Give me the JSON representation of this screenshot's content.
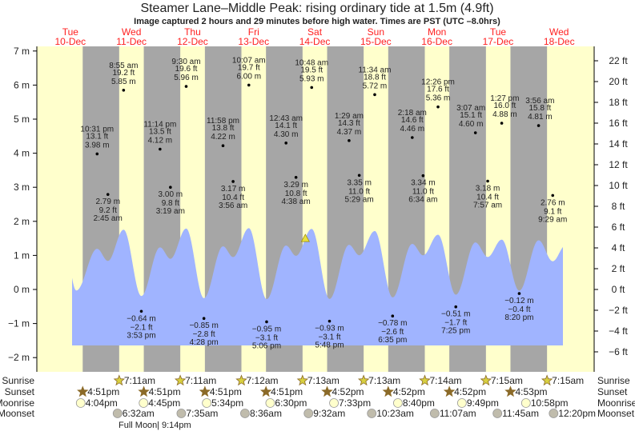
{
  "title": "Steamer Lane–Middle Peak: rising  ordinary tide at 1.5m (4.9ft)",
  "subtitle": "Image captured 2 hours and 29 minutes before high water. Times are PST (UTC –8.0hrs)",
  "colors": {
    "day": "#ffffcc",
    "night": "#a6a6a6",
    "water": "#a0b4ff",
    "date_label": "#ff2020",
    "sunrise": "#d8d040",
    "sunset": "#8b6a28",
    "moonrise": "#ffffcc",
    "moonset": "#c0bcac",
    "current_marker": "#e8e040"
  },
  "chart_data": {
    "type": "area",
    "title": "Steamer Lane–Middle Peak: rising  ordinary tide at 1.5m (4.9ft)",
    "ylim_m": [
      -2,
      7
    ],
    "ylim_ft": [
      -6,
      22
    ],
    "y_ticks_m": [
      "7 m",
      "6 m",
      "5 m",
      "4 m",
      "3 m",
      "2 m",
      "1 m",
      "0 m",
      "−1 m",
      "−2 m"
    ],
    "y_ticks_ft": [
      "22 ft",
      "20 ft",
      "18 ft",
      "16 ft",
      "14 ft",
      "12 ft",
      "10 ft",
      "8 ft",
      "6 ft",
      "4 ft",
      "2 ft",
      "0 ft",
      "−2 ft",
      "−4 ft",
      "−6 ft"
    ],
    "days": [
      {
        "dow": "Tue",
        "date": "10-Dec"
      },
      {
        "dow": "Wed",
        "date": "11-Dec"
      },
      {
        "dow": "Thu",
        "date": "12-Dec"
      },
      {
        "dow": "Fri",
        "date": "13-Dec"
      },
      {
        "dow": "Sat",
        "date": "14-Dec"
      },
      {
        "dow": "Sun",
        "date": "15-Dec"
      },
      {
        "dow": "Mon",
        "date": "16-Dec"
      },
      {
        "dow": "Tue",
        "date": "17-Dec"
      },
      {
        "dow": "Wed",
        "date": "18-Dec"
      }
    ],
    "current": {
      "day": 14,
      "time": "8:19am",
      "m": 1.5,
      "ft": 4.9
    },
    "extremes": [
      {
        "day": 10,
        "time": "10:31 pm",
        "ft": "13.1 ft",
        "m": "3.98 m",
        "v": 3.98,
        "type": "high"
      },
      {
        "day": 11,
        "time": "2:45 am",
        "ft": "9.2 ft",
        "m": "2.79 m",
        "v": 2.79,
        "type": "low"
      },
      {
        "day": 11,
        "time": "8:55 am",
        "ft": "19.2 ft",
        "m": "5.85 m",
        "v": 5.85,
        "type": "high"
      },
      {
        "day": 11,
        "time": "3:53 pm",
        "ft": "−2.1 ft",
        "m": "−0.64 m",
        "v": -0.64,
        "type": "low"
      },
      {
        "day": 11,
        "time": "11:14 pm",
        "ft": "13.5 ft",
        "m": "4.12 m",
        "v": 4.12,
        "type": "high"
      },
      {
        "day": 12,
        "time": "3:19 am",
        "ft": "9.8 ft",
        "m": "3.00 m",
        "v": 3.0,
        "type": "low"
      },
      {
        "day": 12,
        "time": "9:30 am",
        "ft": "19.6 ft",
        "m": "5.96 m",
        "v": 5.96,
        "type": "high"
      },
      {
        "day": 12,
        "time": "4:28 pm",
        "ft": "−2.8 ft",
        "m": "−0.85 m",
        "v": -0.85,
        "type": "low"
      },
      {
        "day": 12,
        "time": "11:58 pm",
        "ft": "13.8 ft",
        "m": "4.22 m",
        "v": 4.22,
        "type": "high"
      },
      {
        "day": 13,
        "time": "3:56 am",
        "ft": "10.4 ft",
        "m": "3.17 m",
        "v": 3.17,
        "type": "low"
      },
      {
        "day": 13,
        "time": "10:07 am",
        "ft": "19.7 ft",
        "m": "6.00 m",
        "v": 6.0,
        "type": "high"
      },
      {
        "day": 13,
        "time": "5:06 pm",
        "ft": "−3.1 ft",
        "m": "−0.95 m",
        "v": -0.95,
        "type": "low"
      },
      {
        "day": 14,
        "time": "12:43 am",
        "ft": "14.1 ft",
        "m": "4.30 m",
        "v": 4.3,
        "type": "high"
      },
      {
        "day": 14,
        "time": "4:38 am",
        "ft": "10.8 ft",
        "m": "3.29 m",
        "v": 3.29,
        "type": "low"
      },
      {
        "day": 14,
        "time": "10:48 am",
        "ft": "19.5 ft",
        "m": "5.93 m",
        "v": 5.93,
        "type": "high"
      },
      {
        "day": 14,
        "time": "5:48 pm",
        "ft": "−3.1 ft",
        "m": "−0.93 m",
        "v": -0.93,
        "type": "low"
      },
      {
        "day": 15,
        "time": "1:29 am",
        "ft": "14.3 ft",
        "m": "4.37 m",
        "v": 4.37,
        "type": "high"
      },
      {
        "day": 15,
        "time": "5:29 am",
        "ft": "11.0 ft",
        "m": "3.35 m",
        "v": 3.35,
        "type": "low"
      },
      {
        "day": 15,
        "time": "11:34 am",
        "ft": "18.8 ft",
        "m": "5.72 m",
        "v": 5.72,
        "type": "high"
      },
      {
        "day": 15,
        "time": "6:35 pm",
        "ft": "−2.6 ft",
        "m": "−0.78 m",
        "v": -0.78,
        "type": "low"
      },
      {
        "day": 16,
        "time": "2:18 am",
        "ft": "14.6 ft",
        "m": "4.46 m",
        "v": 4.46,
        "type": "high"
      },
      {
        "day": 16,
        "time": "6:34 am",
        "ft": "11.0 ft",
        "m": "3.34 m",
        "v": 3.34,
        "type": "low"
      },
      {
        "day": 16,
        "time": "12:26 pm",
        "ft": "17.6 ft",
        "m": "5.36 m",
        "v": 5.36,
        "type": "high"
      },
      {
        "day": 16,
        "time": "7:25 pm",
        "ft": "−1.7 ft",
        "m": "−0.51 m",
        "v": -0.51,
        "type": "low"
      },
      {
        "day": 17,
        "time": "3:07 am",
        "ft": "15.1 ft",
        "m": "4.60 m",
        "v": 4.6,
        "type": "high"
      },
      {
        "day": 17,
        "time": "7:57 am",
        "ft": "10.4 ft",
        "m": "3.18 m",
        "v": 3.18,
        "type": "low"
      },
      {
        "day": 17,
        "time": "1:27 pm",
        "ft": "16.0 ft",
        "m": "4.88 m",
        "v": 4.88,
        "type": "high"
      },
      {
        "day": 17,
        "time": "8:20 pm",
        "ft": "−0.4 ft",
        "m": "−0.12 m",
        "v": -0.12,
        "type": "low"
      },
      {
        "day": 18,
        "time": "3:56 am",
        "ft": "15.8 ft",
        "m": "4.81 m",
        "v": 4.81,
        "type": "high"
      },
      {
        "day": 18,
        "time": "9:29 am",
        "ft": "9.1 ft",
        "m": "2.76 m",
        "v": 2.76,
        "type": "low"
      }
    ]
  },
  "rows": {
    "labels": {
      "sunrise": "Sunrise",
      "sunset": "Sunset",
      "moonrise": "Moonrise",
      "moonset": "Moonset"
    },
    "sunrise": [
      {
        "day": 11,
        "time": "7:11am"
      },
      {
        "day": 12,
        "time": "7:11am"
      },
      {
        "day": 13,
        "time": "7:12am"
      },
      {
        "day": 14,
        "time": "7:13am"
      },
      {
        "day": 15,
        "time": "7:13am"
      },
      {
        "day": 16,
        "time": "7:14am"
      },
      {
        "day": 17,
        "time": "7:15am"
      },
      {
        "day": 18,
        "time": "7:15am"
      }
    ],
    "sunset": [
      {
        "day": 10,
        "time": "4:51pm"
      },
      {
        "day": 11,
        "time": "4:51pm"
      },
      {
        "day": 12,
        "time": "4:51pm"
      },
      {
        "day": 13,
        "time": "4:51pm"
      },
      {
        "day": 14,
        "time": "4:52pm"
      },
      {
        "day": 15,
        "time": "4:52pm"
      },
      {
        "day": 16,
        "time": "4:52pm"
      },
      {
        "day": 17,
        "time": "4:53pm"
      }
    ],
    "moonrise": [
      {
        "day": 10,
        "time": "4:04pm"
      },
      {
        "day": 11,
        "time": "4:45pm"
      },
      {
        "day": 12,
        "time": "5:34pm"
      },
      {
        "day": 13,
        "time": "6:30pm"
      },
      {
        "day": 14,
        "time": "7:33pm"
      },
      {
        "day": 15,
        "time": "8:40pm"
      },
      {
        "day": 16,
        "time": "9:49pm"
      },
      {
        "day": 17,
        "time": "10:58pm"
      }
    ],
    "moonset": [
      {
        "day": 11,
        "time": "6:32am"
      },
      {
        "day": 12,
        "time": "7:35am"
      },
      {
        "day": 13,
        "time": "8:36am"
      },
      {
        "day": 14,
        "time": "9:32am"
      },
      {
        "day": 15,
        "time": "10:23am"
      },
      {
        "day": 16,
        "time": "11:07am"
      },
      {
        "day": 17,
        "time": "11:45am"
      },
      {
        "day": 18,
        "time": "12:20pm"
      }
    ],
    "moon_phase": {
      "label": "Full Moon",
      "time": "9:14pm"
    }
  }
}
